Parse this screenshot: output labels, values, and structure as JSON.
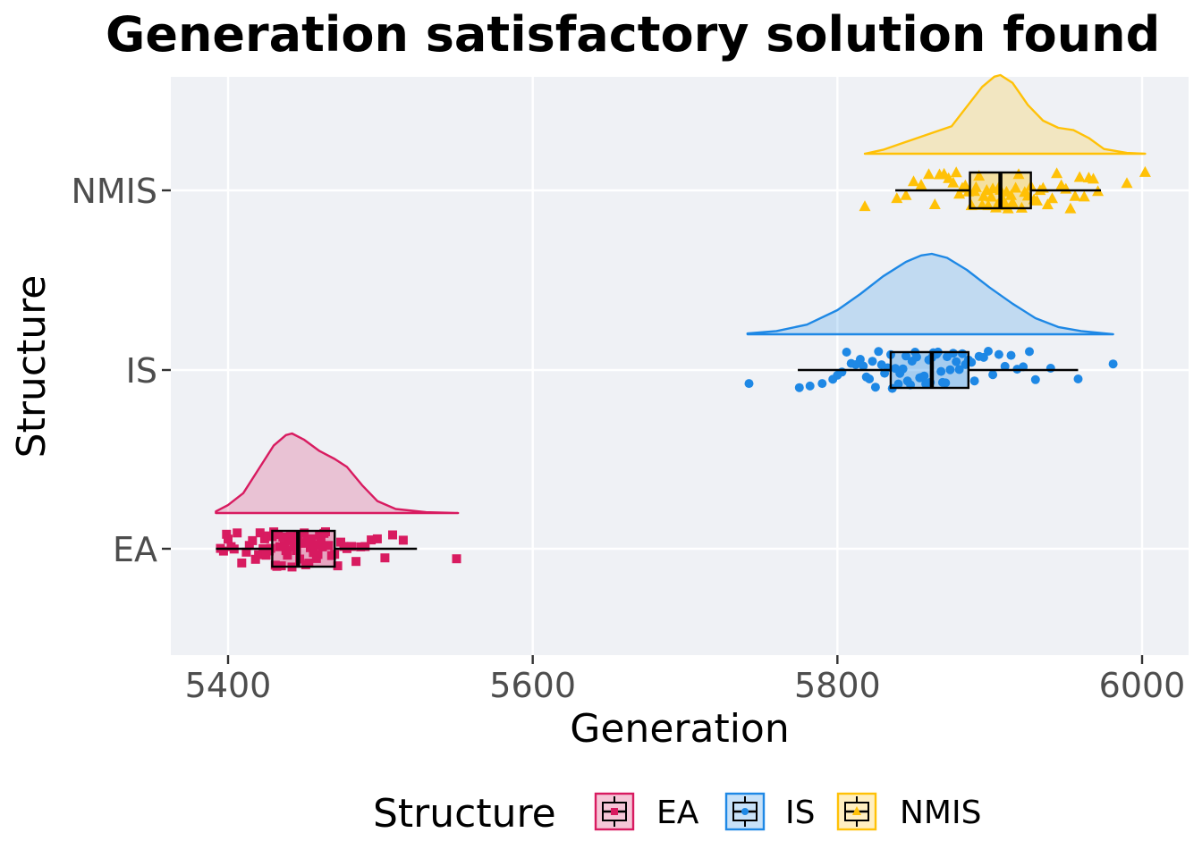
{
  "chart_data": {
    "type": "raincloud",
    "title": "Generation satisfactory solution found",
    "xlabel": "Generation",
    "ylabel": "Structure",
    "xlim": [
      5362,
      6016
    ],
    "x_ticks": [
      5400,
      5600,
      5800,
      6000
    ],
    "x_tick_labels": [
      "5400",
      "5600",
      "5800",
      "6000"
    ],
    "categories": [
      "EA",
      "IS",
      "NMIS"
    ],
    "grid": true,
    "legend": {
      "title": "Structure",
      "position": "bottom",
      "entries": [
        "EA",
        "IS",
        "NMIS"
      ]
    },
    "series": [
      {
        "name": "EA",
        "color": "#d81b60",
        "marker": "square",
        "box": {
          "min": 5392,
          "q1": 5429,
          "median": 5446,
          "q3": 5470,
          "max": 5524
        },
        "density": [
          [
            5392,
            0.02
          ],
          [
            5400,
            0.1
          ],
          [
            5410,
            0.25
          ],
          [
            5420,
            0.55
          ],
          [
            5430,
            0.85
          ],
          [
            5438,
            0.98
          ],
          [
            5442,
            1.0
          ],
          [
            5450,
            0.92
          ],
          [
            5460,
            0.78
          ],
          [
            5470,
            0.68
          ],
          [
            5478,
            0.58
          ],
          [
            5488,
            0.35
          ],
          [
            5498,
            0.15
          ],
          [
            5510,
            0.05
          ],
          [
            5530,
            0.01
          ],
          [
            5551,
            0.0
          ]
        ],
        "points": [
          5395,
          5397,
          5399,
          5400,
          5402,
          5404,
          5406,
          5409,
          5412,
          5414,
          5416,
          5418,
          5420,
          5421,
          5423,
          5424,
          5425,
          5426,
          5427,
          5428,
          5429,
          5430,
          5431,
          5432,
          5433,
          5434,
          5435,
          5436,
          5437,
          5438,
          5439,
          5440,
          5441,
          5442,
          5443,
          5444,
          5445,
          5446,
          5446,
          5447,
          5448,
          5449,
          5450,
          5451,
          5452,
          5453,
          5454,
          5455,
          5456,
          5457,
          5458,
          5459,
          5460,
          5461,
          5462,
          5463,
          5464,
          5466,
          5468,
          5470,
          5472,
          5474,
          5476,
          5478,
          5481,
          5484,
          5487,
          5490,
          5494,
          5498,
          5503,
          5508,
          5515,
          5550
        ]
      },
      {
        "name": "IS",
        "color": "#1e88e5",
        "marker": "circle",
        "box": {
          "min": 5774,
          "q1": 5835,
          "median": 5862,
          "q3": 5886,
          "max": 5958
        },
        "density": [
          [
            5741,
            0.01
          ],
          [
            5760,
            0.04
          ],
          [
            5780,
            0.12
          ],
          [
            5800,
            0.3
          ],
          [
            5815,
            0.5
          ],
          [
            5830,
            0.72
          ],
          [
            5845,
            0.9
          ],
          [
            5855,
            0.98
          ],
          [
            5862,
            1.0
          ],
          [
            5872,
            0.95
          ],
          [
            5885,
            0.8
          ],
          [
            5900,
            0.58
          ],
          [
            5915,
            0.38
          ],
          [
            5930,
            0.2
          ],
          [
            5945,
            0.09
          ],
          [
            5960,
            0.04
          ],
          [
            5981,
            0.0
          ]
        ],
        "points": [
          5742,
          5775,
          5782,
          5790,
          5797,
          5800,
          5803,
          5806,
          5809,
          5812,
          5815,
          5817,
          5819,
          5821,
          5823,
          5825,
          5827,
          5829,
          5831,
          5833,
          5835,
          5836,
          5838,
          5840,
          5841,
          5843,
          5845,
          5846,
          5848,
          5849,
          5851,
          5852,
          5854,
          5855,
          5857,
          5858,
          5860,
          5861,
          5862,
          5863,
          5865,
          5866,
          5868,
          5869,
          5871,
          5872,
          5874,
          5876,
          5878,
          5880,
          5882,
          5884,
          5886,
          5888,
          5890,
          5893,
          5896,
          5899,
          5902,
          5906,
          5910,
          5914,
          5918,
          5922,
          5926,
          5930,
          5940,
          5958,
          5981
        ]
      },
      {
        "name": "NMIS",
        "color": "#ffc107",
        "marker": "triangle",
        "box": {
          "min": 5838,
          "q1": 5887,
          "median": 5907,
          "q3": 5927,
          "max": 5973
        },
        "density": [
          [
            5818,
            0.0
          ],
          [
            5830,
            0.05
          ],
          [
            5845,
            0.15
          ],
          [
            5860,
            0.25
          ],
          [
            5875,
            0.35
          ],
          [
            5885,
            0.6
          ],
          [
            5895,
            0.85
          ],
          [
            5903,
            0.98
          ],
          [
            5907,
            1.0
          ],
          [
            5915,
            0.9
          ],
          [
            5925,
            0.62
          ],
          [
            5935,
            0.42
          ],
          [
            5945,
            0.33
          ],
          [
            5955,
            0.3
          ],
          [
            5965,
            0.2
          ],
          [
            5975,
            0.06
          ],
          [
            5990,
            0.01
          ],
          [
            6002,
            0.0
          ]
        ],
        "points": [
          5818,
          5839,
          5845,
          5850,
          5855,
          5860,
          5864,
          5867,
          5870,
          5873,
          5876,
          5878,
          5880,
          5882,
          5884,
          5886,
          5888,
          5890,
          5891,
          5893,
          5895,
          5896,
          5898,
          5899,
          5901,
          5902,
          5904,
          5905,
          5906,
          5907,
          5908,
          5909,
          5910,
          5911,
          5912,
          5914,
          5915,
          5917,
          5919,
          5921,
          5923,
          5925,
          5927,
          5929,
          5931,
          5933,
          5935,
          5938,
          5941,
          5944,
          5947,
          5950,
          5953,
          5956,
          5959,
          5962,
          5965,
          5968,
          5971,
          5990,
          6002
        ]
      }
    ]
  }
}
